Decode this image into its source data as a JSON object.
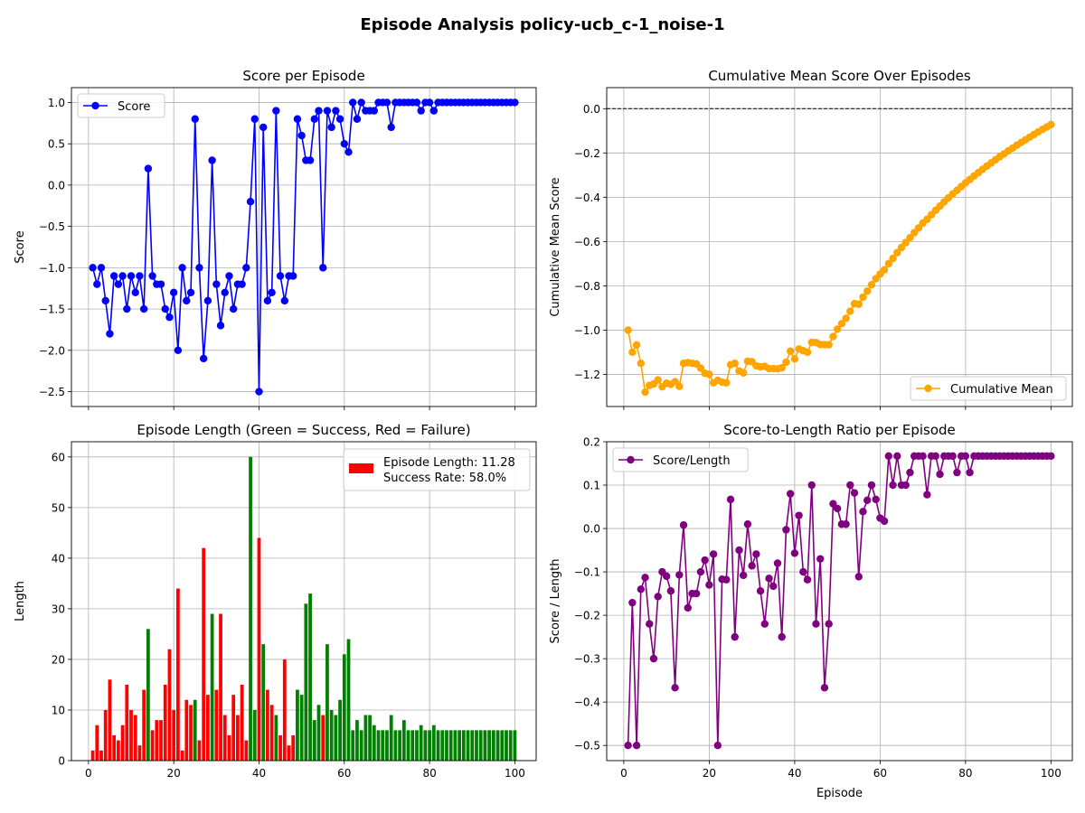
{
  "figure_title": "Episode Analysis policy-ucb_c-1_noise-1",
  "chart_data": [
    {
      "id": "score",
      "type": "line",
      "title": "Score per Episode",
      "xlabel": "",
      "ylabel": "Score",
      "xlim": [
        -4,
        105
      ],
      "ylim": [
        -2.68,
        1.18
      ],
      "xticks": [
        0,
        20,
        40,
        60,
        80,
        100
      ],
      "xtick_labels": [
        "",
        "",
        "",
        "",
        "",
        ""
      ],
      "yticks": [
        1.0,
        0.5,
        0.0,
        -0.5,
        -1.0,
        -1.5,
        -2.0,
        -2.5
      ],
      "ytick_labels": [
        "1.0",
        "0.5",
        "0.0",
        "−0.5",
        "−1.0",
        "−1.5",
        "−2.0",
        "−2.5"
      ],
      "grid": true,
      "legend_position": "upper left",
      "series": [
        {
          "name": "Score",
          "color": "#0000ff",
          "marker": "circle",
          "x_start": 1,
          "values": [
            -1.0,
            -1.2,
            -1.0,
            -1.4,
            -1.8,
            -1.1,
            -1.2,
            -1.1,
            -1.5,
            -1.1,
            -1.3,
            -1.1,
            -1.5,
            0.2,
            -1.1,
            -1.2,
            -1.2,
            -1.5,
            -1.6,
            -1.3,
            -2.0,
            -1.0,
            -1.4,
            -1.3,
            0.8,
            -1.0,
            -2.1,
            -1.4,
            0.3,
            -1.2,
            -1.7,
            -1.3,
            -1.1,
            -1.5,
            -1.2,
            -1.2,
            -1.0,
            -0.2,
            0.8,
            -2.5,
            0.7,
            -1.4,
            -1.3,
            0.9,
            -1.1,
            -1.4,
            -1.1,
            -1.1,
            0.8,
            0.6,
            0.3,
            0.3,
            0.8,
            0.9,
            -1.0,
            0.9,
            0.7,
            0.9,
            0.8,
            0.5,
            0.4,
            1.0,
            0.8,
            1.0,
            0.9,
            0.9,
            0.9,
            1.0,
            1.0,
            1.0,
            0.7,
            1.0,
            1.0,
            1.0,
            1.0,
            1.0,
            1.0,
            0.9,
            1.0,
            1.0,
            0.9,
            1.0,
            1.0,
            1.0,
            1.0,
            1.0,
            1.0,
            1.0,
            1.0,
            1.0,
            1.0,
            1.0,
            1.0,
            1.0,
            1.0,
            1.0,
            1.0,
            1.0,
            1.0,
            1.0
          ]
        }
      ]
    },
    {
      "id": "cummean",
      "type": "line",
      "title": "Cumulative Mean Score Over Episodes",
      "xlabel": "",
      "ylabel": "Cumulative Mean Score",
      "xlim": [
        -4,
        105
      ],
      "ylim": [
        -1.345,
        0.095
      ],
      "xticks": [
        0,
        20,
        40,
        60,
        80,
        100
      ],
      "xtick_labels": [
        "",
        "",
        "",
        "",
        "",
        ""
      ],
      "yticks": [
        0.0,
        -0.2,
        -0.4,
        -0.6,
        -0.8,
        -1.0,
        -1.2
      ],
      "ytick_labels": [
        "0.0",
        "−0.2",
        "−0.4",
        "−0.6",
        "−0.8",
        "−1.0",
        "−1.2"
      ],
      "grid": true,
      "legend_position": "lower right",
      "reference_line_y": 0.0,
      "series": [
        {
          "name": "Cumulative Mean",
          "color": "#ffa500",
          "marker": "circle",
          "x_start": 1,
          "values": [
            -1.0,
            -1.1,
            -1.067,
            -1.15,
            -1.28,
            -1.25,
            -1.243,
            -1.225,
            -1.256,
            -1.24,
            -1.245,
            -1.233,
            -1.254,
            -1.15,
            -1.147,
            -1.15,
            -1.153,
            -1.172,
            -1.195,
            -1.2,
            -1.238,
            -1.227,
            -1.235,
            -1.238,
            -1.156,
            -1.15,
            -1.185,
            -1.193,
            -1.141,
            -1.143,
            -1.161,
            -1.166,
            -1.164,
            -1.174,
            -1.174,
            -1.175,
            -1.17,
            -1.145,
            -1.095,
            -1.13,
            -1.085,
            -1.093,
            -1.1,
            -1.055,
            -1.056,
            -1.065,
            -1.066,
            -1.066,
            -1.029,
            -0.996,
            -0.971,
            -0.947,
            -0.915,
            -0.881,
            -0.883,
            -0.851,
            -0.824,
            -0.795,
            -0.768,
            -0.747,
            -0.728,
            -0.7,
            -0.676,
            -0.65,
            -0.627,
            -0.605,
            -0.583,
            -0.56,
            -0.539,
            -0.517,
            -0.5,
            -0.479,
            -0.459,
            -0.44,
            -0.421,
            -0.403,
            -0.385,
            -0.369,
            -0.352,
            -0.335,
            -0.32,
            -0.304,
            -0.289,
            -0.274,
            -0.259,
            -0.245,
            -0.231,
            -0.217,
            -0.204,
            -0.191,
            -0.178,
            -0.165,
            -0.153,
            -0.141,
            -0.129,
            -0.117,
            -0.105,
            -0.094,
            -0.083,
            -0.072
          ]
        }
      ]
    },
    {
      "id": "length",
      "type": "bar",
      "title": "Episode Length (Green = Success, Red = Failure)",
      "xlabel": "",
      "ylabel": "Length",
      "xlim": [
        -4,
        105
      ],
      "ylim": [
        0,
        63
      ],
      "xticks": [
        0,
        20,
        40,
        60,
        80,
        100
      ],
      "xtick_labels": [
        "0",
        "20",
        "40",
        "60",
        "80",
        "100"
      ],
      "yticks": [
        0,
        10,
        20,
        30,
        40,
        50,
        60
      ],
      "ytick_labels": [
        "0",
        "10",
        "20",
        "30",
        "40",
        "50",
        "60"
      ],
      "grid": true,
      "legend_position": "upper right",
      "legend_lines": [
        "Episode Length: 11.28",
        "Success Rate: 58.0%"
      ],
      "legend_color": "#ff0000",
      "success_color": "#008000",
      "failure_color": "#ff0000",
      "x_start": 1,
      "values": [
        2,
        7,
        2,
        10,
        16,
        5,
        4,
        7,
        15,
        10,
        9,
        3,
        14,
        26,
        6,
        8,
        8,
        15,
        22,
        10,
        34,
        2,
        12,
        11,
        12,
        4,
        42,
        13,
        29,
        14,
        29,
        9,
        5,
        13,
        9,
        15,
        4,
        60,
        10,
        44,
        23,
        14,
        11,
        9,
        5,
        20,
        3,
        5,
        14,
        13,
        31,
        33,
        8,
        11,
        9,
        23,
        10,
        9,
        12,
        21,
        24,
        6,
        8,
        6,
        9,
        9,
        7,
        6,
        6,
        6,
        9,
        6,
        6,
        8,
        6,
        6,
        6,
        7,
        6,
        6,
        7,
        6,
        6,
        6,
        6,
        6,
        6,
        6,
        6,
        6,
        6,
        6,
        6,
        6,
        6,
        6,
        6,
        6,
        6,
        6
      ],
      "success": [
        0,
        0,
        0,
        0,
        0,
        0,
        0,
        0,
        0,
        0,
        0,
        0,
        0,
        1,
        0,
        0,
        0,
        0,
        0,
        0,
        0,
        0,
        0,
        0,
        1,
        0,
        0,
        0,
        1,
        0,
        0,
        0,
        0,
        0,
        0,
        0,
        0,
        1,
        1,
        0,
        1,
        0,
        0,
        1,
        0,
        0,
        0,
        0,
        1,
        1,
        1,
        1,
        1,
        1,
        0,
        1,
        1,
        1,
        1,
        1,
        1,
        1,
        1,
        1,
        1,
        1,
        1,
        1,
        1,
        1,
        1,
        1,
        1,
        1,
        1,
        1,
        1,
        1,
        1,
        1,
        1,
        1,
        1,
        1,
        1,
        1,
        1,
        1,
        1,
        1,
        1,
        1,
        1,
        1,
        1,
        1,
        1,
        1,
        1,
        1
      ]
    },
    {
      "id": "ratio",
      "type": "line",
      "title": "Score-to-Length Ratio per Episode",
      "xlabel": "Episode",
      "ylabel": "Score / Length",
      "xlim": [
        -4,
        105
      ],
      "ylim": [
        -0.535,
        0.2
      ],
      "xticks": [
        0,
        20,
        40,
        60,
        80,
        100
      ],
      "xtick_labels": [
        "0",
        "20",
        "40",
        "60",
        "80",
        "100"
      ],
      "yticks": [
        0.2,
        0.1,
        0.0,
        -0.1,
        -0.2,
        -0.3,
        -0.4,
        -0.5
      ],
      "ytick_labels": [
        "0.2",
        "0.1",
        "0.0",
        "−0.1",
        "−0.2",
        "−0.3",
        "−0.4",
        "−0.5"
      ],
      "grid": true,
      "legend_position": "upper left",
      "series": [
        {
          "name": "Score/Length",
          "color": "#800080",
          "marker": "circle",
          "x_start": 1,
          "values": [
            -0.5,
            -0.171,
            -0.5,
            -0.14,
            -0.113,
            -0.22,
            -0.3,
            -0.157,
            -0.1,
            -0.11,
            -0.144,
            -0.367,
            -0.107,
            0.008,
            -0.183,
            -0.15,
            -0.15,
            -0.1,
            -0.073,
            -0.13,
            -0.059,
            -0.5,
            -0.117,
            -0.118,
            0.067,
            -0.25,
            -0.05,
            -0.108,
            0.01,
            -0.086,
            -0.059,
            -0.144,
            -0.22,
            -0.115,
            -0.133,
            -0.08,
            -0.25,
            -0.003,
            0.08,
            -0.057,
            0.03,
            -0.1,
            -0.118,
            0.1,
            -0.22,
            -0.07,
            -0.367,
            -0.22,
            0.057,
            0.046,
            0.01,
            0.01,
            0.1,
            0.082,
            -0.111,
            0.039,
            0.065,
            0.1,
            0.067,
            0.024,
            0.017,
            0.167,
            0.1,
            0.167,
            0.1,
            0.1,
            0.129,
            0.167,
            0.167,
            0.167,
            0.078,
            0.167,
            0.167,
            0.125,
            0.167,
            0.167,
            0.167,
            0.129,
            0.167,
            0.167,
            0.129,
            0.167,
            0.167,
            0.167,
            0.167,
            0.167,
            0.167,
            0.167,
            0.167,
            0.167,
            0.167,
            0.167,
            0.167,
            0.167,
            0.167,
            0.167,
            0.167,
            0.167,
            0.167,
            0.167
          ]
        }
      ]
    }
  ]
}
